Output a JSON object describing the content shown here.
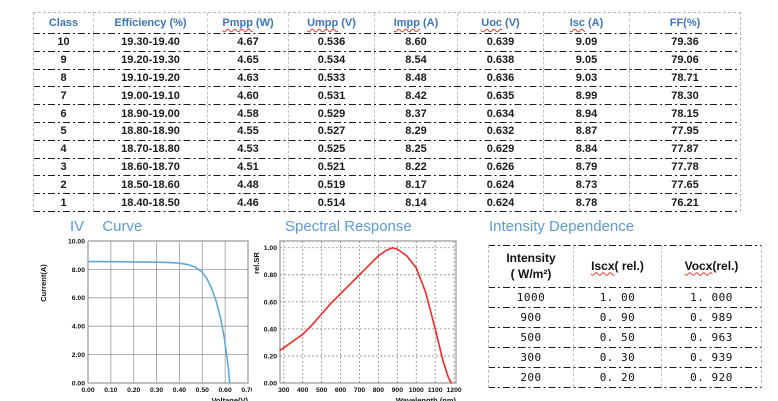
{
  "spec_table": {
    "headers": [
      {
        "label": "Class"
      },
      {
        "label": "Efficiency (%)"
      },
      {
        "term": "Pmpp",
        "unit": "(W)"
      },
      {
        "term": "Umpp",
        "unit": "(V)"
      },
      {
        "term": "Impp",
        "unit": "(A)"
      },
      {
        "term": "Uoc",
        "unit": "(V)"
      },
      {
        "term": "Isc",
        "unit": "(A)"
      },
      {
        "label": "FF(%)"
      }
    ],
    "rows": [
      [
        "10",
        "19.30-19.40",
        "4.67",
        "0.536",
        "8.60",
        "0.639",
        "9.09",
        "79.36"
      ],
      [
        "9",
        "19.20-19.30",
        "4.65",
        "0.534",
        "8.54",
        "0.638",
        "9.05",
        "79.06"
      ],
      [
        "8",
        "19.10-19.20",
        "4.63",
        "0.533",
        "8.48",
        "0.636",
        "9.03",
        "78.71"
      ],
      [
        "7",
        "19.00-19.10",
        "4.60",
        "0.531",
        "8.42",
        "0.635",
        "8.99",
        "78.30"
      ],
      [
        "6",
        "18.90-19.00",
        "4.58",
        "0.529",
        "8.37",
        "0.634",
        "8.94",
        "78.15"
      ],
      [
        "5",
        "18.80-18.90",
        "4.55",
        "0.527",
        "8.29",
        "0.632",
        "8.87",
        "77.95"
      ],
      [
        "4",
        "18.70-18.80",
        "4.53",
        "0.525",
        "8.25",
        "0.629",
        "8.84",
        "77.87"
      ],
      [
        "3",
        "18.60-18.70",
        "4.51",
        "0.521",
        "8.22",
        "0.626",
        "8.79",
        "77.78"
      ],
      [
        "2",
        "18.50-18.60",
        "4.48",
        "0.519",
        "8.17",
        "0.624",
        "8.73",
        "77.65"
      ],
      [
        "1",
        "18.40-18.50",
        "4.46",
        "0.514",
        "8.14",
        "0.624",
        "8.78",
        "76.21"
      ]
    ]
  },
  "sections": {
    "iv_title": "IV Curve",
    "spectral_title": "Spectral Response",
    "intensity_title": "Intensity Dependence"
  },
  "chart_data": [
    {
      "id": "iv-curve",
      "type": "line",
      "title": "IV Curve",
      "xlabel": "Voltage(V)",
      "ylabel": "Current(A)",
      "xlim": [
        0,
        0.7
      ],
      "ylim": [
        0,
        10
      ],
      "grid_style": "solid",
      "line_color": "#5fa8dc",
      "xticks": [
        {
          "v": 0,
          "l": "0.00"
        },
        {
          "v": 0.1,
          "l": "0.10"
        },
        {
          "v": 0.2,
          "l": "0.20"
        },
        {
          "v": 0.3,
          "l": "0.30"
        },
        {
          "v": 0.4,
          "l": "0.40"
        },
        {
          "v": 0.5,
          "l": "0.50"
        },
        {
          "v": 0.6,
          "l": "0.60"
        },
        {
          "v": 0.7,
          "l": "0.70"
        }
      ],
      "yticks": [
        {
          "v": 0,
          "l": "0.00"
        },
        {
          "v": 2,
          "l": "2.00"
        },
        {
          "v": 4,
          "l": "4.00"
        },
        {
          "v": 6,
          "l": "6.00"
        },
        {
          "v": 8,
          "l": "8.00"
        },
        {
          "v": 10,
          "l": "10.00"
        }
      ],
      "points": [
        [
          0,
          8.55
        ],
        [
          0.1,
          8.54
        ],
        [
          0.2,
          8.53
        ],
        [
          0.3,
          8.51
        ],
        [
          0.35,
          8.49
        ],
        [
          0.4,
          8.44
        ],
        [
          0.44,
          8.33
        ],
        [
          0.47,
          8.15
        ],
        [
          0.5,
          7.8
        ],
        [
          0.52,
          7.35
        ],
        [
          0.54,
          6.7
        ],
        [
          0.56,
          5.8
        ],
        [
          0.58,
          4.55
        ],
        [
          0.595,
          3.3
        ],
        [
          0.605,
          2.2
        ],
        [
          0.615,
          0.9
        ],
        [
          0.62,
          0
        ]
      ]
    },
    {
      "id": "spectral-response",
      "type": "line",
      "title": "Spectral Response",
      "xlabel": "Wavelength (nm)",
      "ylabel": "rel.SR",
      "xlim": [
        280,
        1210
      ],
      "ylim": [
        0,
        1.05
      ],
      "grid_style": "dashed",
      "line_color": "#ee2b23",
      "xticks": [
        {
          "v": 300,
          "l": "300"
        },
        {
          "v": 400,
          "l": "400"
        },
        {
          "v": 500,
          "l": "500"
        },
        {
          "v": 600,
          "l": "600"
        },
        {
          "v": 700,
          "l": "700"
        },
        {
          "v": 800,
          "l": "800"
        },
        {
          "v": 900,
          "l": "900"
        },
        {
          "v": 1000,
          "l": "1000"
        },
        {
          "v": 1100,
          "l": "1100"
        },
        {
          "v": 1200,
          "l": "1200"
        }
      ],
      "yticks": [
        {
          "v": 0,
          "l": "0.00"
        },
        {
          "v": 0.2,
          "l": "0.20"
        },
        {
          "v": 0.4,
          "l": "0.40"
        },
        {
          "v": 0.6,
          "l": "0.60"
        },
        {
          "v": 0.8,
          "l": "0.80"
        },
        {
          "v": 1.0,
          "l": "1.00"
        }
      ],
      "points": [
        [
          280,
          0.24
        ],
        [
          300,
          0.26
        ],
        [
          350,
          0.31
        ],
        [
          400,
          0.36
        ],
        [
          450,
          0.43
        ],
        [
          500,
          0.51
        ],
        [
          550,
          0.59
        ],
        [
          600,
          0.66
        ],
        [
          650,
          0.73
        ],
        [
          700,
          0.8
        ],
        [
          750,
          0.87
        ],
        [
          800,
          0.94
        ],
        [
          840,
          0.98
        ],
        [
          875,
          1.0
        ],
        [
          900,
          0.99
        ],
        [
          950,
          0.94
        ],
        [
          1000,
          0.85
        ],
        [
          1050,
          0.67
        ],
        [
          1100,
          0.4
        ],
        [
          1140,
          0.17
        ],
        [
          1170,
          0.04
        ],
        [
          1185,
          0.0
        ]
      ]
    }
  ],
  "intensity_table": {
    "headers": [
      {
        "l1": "Intensity",
        "l2": "( W/m²)"
      },
      {
        "term": "Iscx",
        "rest": "( rel.)"
      },
      {
        "term": "Vocx",
        "rest": "(rel.)"
      }
    ],
    "rows": [
      [
        "1000",
        "1. 00",
        "1. 000"
      ],
      [
        "900",
        "0. 90",
        "0. 989"
      ],
      [
        "500",
        "0. 50",
        "0. 963"
      ],
      [
        "300",
        "0. 30",
        "0. 939"
      ],
      [
        "200",
        "0. 20",
        "0. 920"
      ]
    ]
  }
}
